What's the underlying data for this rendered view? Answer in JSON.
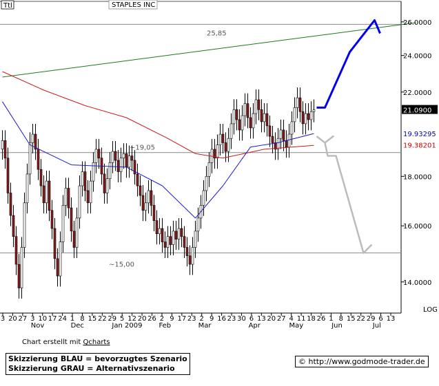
{
  "ticker_box": "Ttl",
  "chart_data": {
    "type": "candlestick",
    "title": "STAPLES INC",
    "y_scale": "log",
    "y_scale_label": "LOG",
    "ylim": [
      13.0,
      27.3
    ],
    "y_ticks": [
      "26.0000",
      "24.0000",
      "22.0000",
      "18.0000",
      "16.0000",
      "14.0000"
    ],
    "y_tick_values": [
      26,
      24,
      22,
      18,
      16,
      14
    ],
    "x_ticks": [
      "3",
      "20",
      "27",
      "3",
      "10",
      "17",
      "24",
      "1",
      "8",
      "15",
      "22",
      "29",
      "5",
      "12",
      "20",
      "26",
      "2",
      "9",
      "17",
      "23",
      "2",
      "9",
      "16",
      "23",
      "30",
      "6",
      "13",
      "20",
      "27",
      "4",
      "11",
      "18",
      "26",
      "1",
      "8",
      "15",
      "22",
      "29",
      "6",
      "13"
    ],
    "x_month_labels": [
      "Nov",
      "Dec",
      "Jan 2009",
      "Feb",
      "Mar",
      "Apr",
      "May",
      "Jun",
      "Jul"
    ],
    "horizontal_lines": [
      {
        "value": 25.85,
        "label": "25,85"
      },
      {
        "value": 19.05,
        "label": "~19,05"
      },
      {
        "value": 15.0,
        "label": "~15,00"
      }
    ],
    "last_price": "21.0900",
    "indicator_labels": [
      {
        "value": "19.93295",
        "color": "#0000cc"
      },
      {
        "value": "19.38201",
        "color": "#cc0000"
      }
    ],
    "closes": [
      19.6,
      18.8,
      17.3,
      16.4,
      15.6,
      14.6,
      13.8,
      15.2,
      16.9,
      18.1,
      19.5,
      19.9,
      19.2,
      18.3,
      17.6,
      16.9,
      17.8,
      16.6,
      15.9,
      14.8,
      14.2,
      15.4,
      16.8,
      17.5,
      16.7,
      15.8,
      15.2,
      16.3,
      17.6,
      18.2,
      17.4,
      16.9,
      17.8,
      18.6,
      19.2,
      18.8,
      18.1,
      17.3,
      17.9,
      18.6,
      19.1,
      18.7,
      18.2,
      18.8,
      19.0,
      18.4,
      18.9,
      18.7,
      18.1,
      17.6,
      17.2,
      16.6,
      16.9,
      17.4,
      16.8,
      16.2,
      15.7,
      15.9,
      15.4,
      15.2,
      15.6,
      15.3,
      15.8,
      15.5,
      15.9,
      15.6,
      15.2,
      14.9,
      14.6,
      15.2,
      15.8,
      16.3,
      16.8,
      17.4,
      18.0,
      18.6,
      19.2,
      18.8,
      19.4,
      19.9,
      19.5,
      19.1,
      19.7,
      20.4,
      21.1,
      20.6,
      20.1,
      20.8,
      21.4,
      20.7,
      20.2,
      20.9,
      21.6,
      21.1,
      20.5,
      20.9,
      20.3,
      19.8,
      19.5,
      19.2,
      19.7,
      20.1,
      19.6,
      19.3,
      19.9,
      20.5,
      21.2,
      21.7,
      21.0,
      20.4,
      20.9,
      20.6,
      21.0,
      21.09
    ],
    "ma_blue": [
      {
        "x": 0,
        "v": 21.5
      },
      {
        "x": 10,
        "v": 19.4
      },
      {
        "x": 25,
        "v": 18.5
      },
      {
        "x": 45,
        "v": 18.4
      },
      {
        "x": 58,
        "v": 17.6
      },
      {
        "x": 70,
        "v": 16.3
      },
      {
        "x": 80,
        "v": 17.6
      },
      {
        "x": 90,
        "v": 19.3
      },
      {
        "x": 100,
        "v": 19.5
      },
      {
        "x": 113,
        "v": 19.93
      }
    ],
    "ma_red": [
      {
        "x": 0,
        "v": 23.1
      },
      {
        "x": 15,
        "v": 22.1
      },
      {
        "x": 30,
        "v": 21.3
      },
      {
        "x": 45,
        "v": 20.7
      },
      {
        "x": 60,
        "v": 19.7
      },
      {
        "x": 70,
        "v": 19.0
      },
      {
        "x": 80,
        "v": 18.8
      },
      {
        "x": 95,
        "v": 19.2
      },
      {
        "x": 113,
        "v": 19.38
      }
    ],
    "trend_green": [
      {
        "x": 0,
        "v": 22.8
      },
      {
        "x": 150,
        "v": 25.95
      }
    ],
    "scenario_blue": [
      {
        "x": 114,
        "v": 21.2
      },
      {
        "x": 117,
        "v": 21.2
      },
      {
        "x": 126,
        "v": 24.2
      },
      {
        "x": 135,
        "v": 26.1
      },
      {
        "x": 137,
        "v": 25.3
      }
    ],
    "scenario_grey": [
      {
        "x": 114,
        "v": 19.8
      },
      {
        "x": 117,
        "v": 19.5
      },
      {
        "x": 120,
        "v": 19.8
      },
      {
        "x": 117,
        "v": 19.5
      },
      {
        "x": 118,
        "v": 18.9
      },
      {
        "x": 121,
        "v": 18.9
      },
      {
        "x": 131,
        "v": 15.0
      },
      {
        "x": 134,
        "v": 15.3
      }
    ]
  },
  "footer": {
    "credit_prefix": "Chart erstellt mit ",
    "credit_link": "Qcharts",
    "legend_blue": "Skizzierung BLAU = bevorzugtes Szenario",
    "legend_grey": "Skizzierung GRAU = Alternativszenario",
    "copyright": "© http://www.godmode-trader.de"
  },
  "colors": {
    "candle_up": "#ffffff",
    "candle_down": "#8b1a1a",
    "ma_blue": "#1a1acc",
    "ma_red": "#cc1a1a",
    "trend": "#1a7a1a",
    "scenario_blue": "#0000ee",
    "scenario_grey": "#bbbbbb",
    "hline": "#888888"
  }
}
